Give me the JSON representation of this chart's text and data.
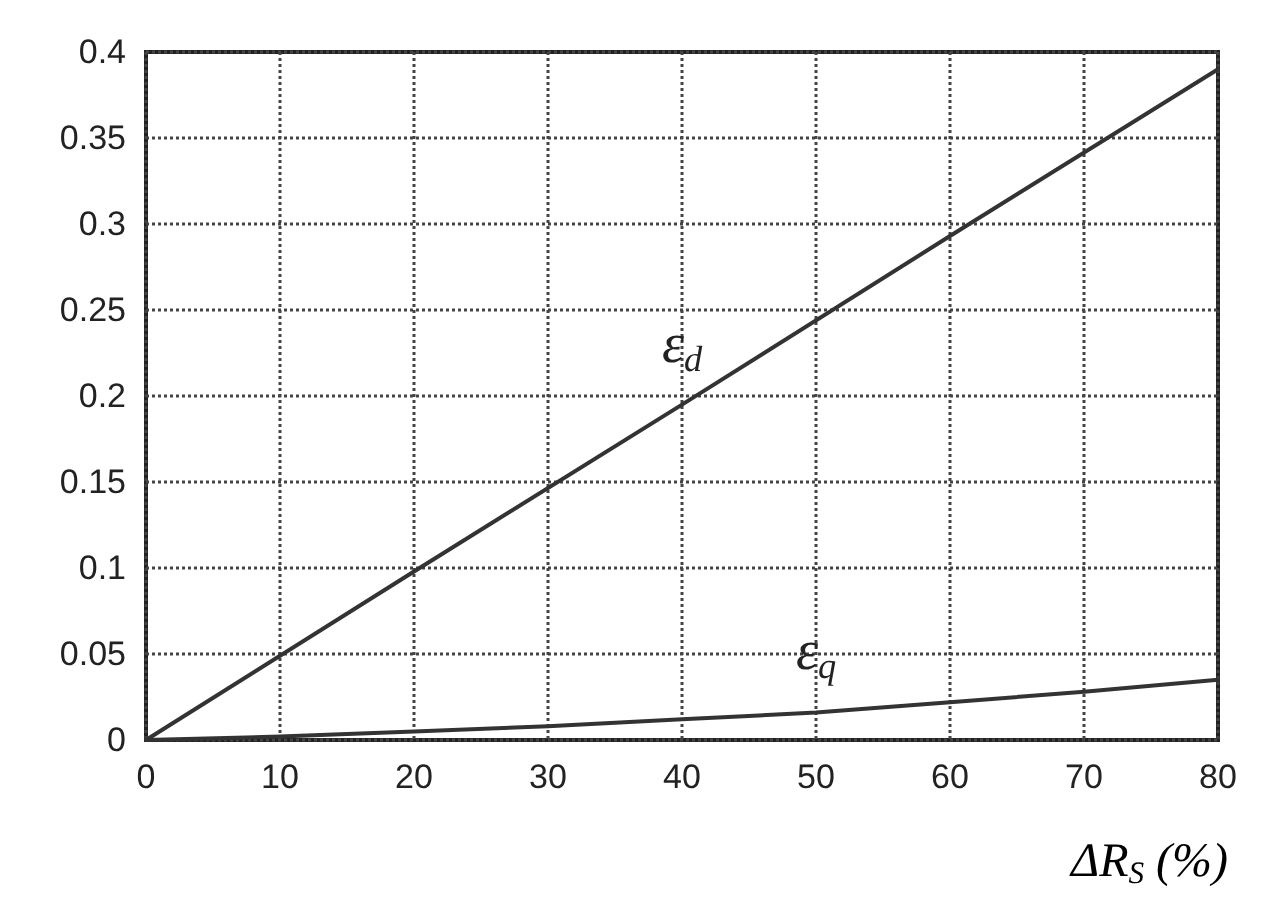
{
  "chart_data": {
    "type": "line",
    "xlabel": "ΔR$_{S}$ (%)",
    "series": [
      {
        "name": "ε$_{d}$",
        "color": "#333333",
        "x": [
          0,
          20,
          40,
          60,
          80
        ],
        "values": [
          0,
          0.098,
          0.195,
          0.293,
          0.39
        ]
      },
      {
        "name": "ε$_{q}$",
        "color": "#333333",
        "x": [
          0,
          10,
          20,
          30,
          40,
          50,
          60,
          70,
          80
        ],
        "values": [
          0,
          0.002,
          0.005,
          0.008,
          0.012,
          0.016,
          0.022,
          0.028,
          0.035
        ]
      }
    ],
    "xlim": [
      0,
      80
    ],
    "xticks": [
      0,
      10,
      20,
      30,
      40,
      50,
      60,
      70,
      80
    ],
    "ylim": [
      0,
      0.4
    ],
    "yticks": [
      0,
      0.05,
      0.1,
      0.15,
      0.2,
      0.25,
      0.3,
      0.35,
      0.4
    ],
    "grid": true,
    "marker": "none",
    "line_style": "solid"
  }
}
